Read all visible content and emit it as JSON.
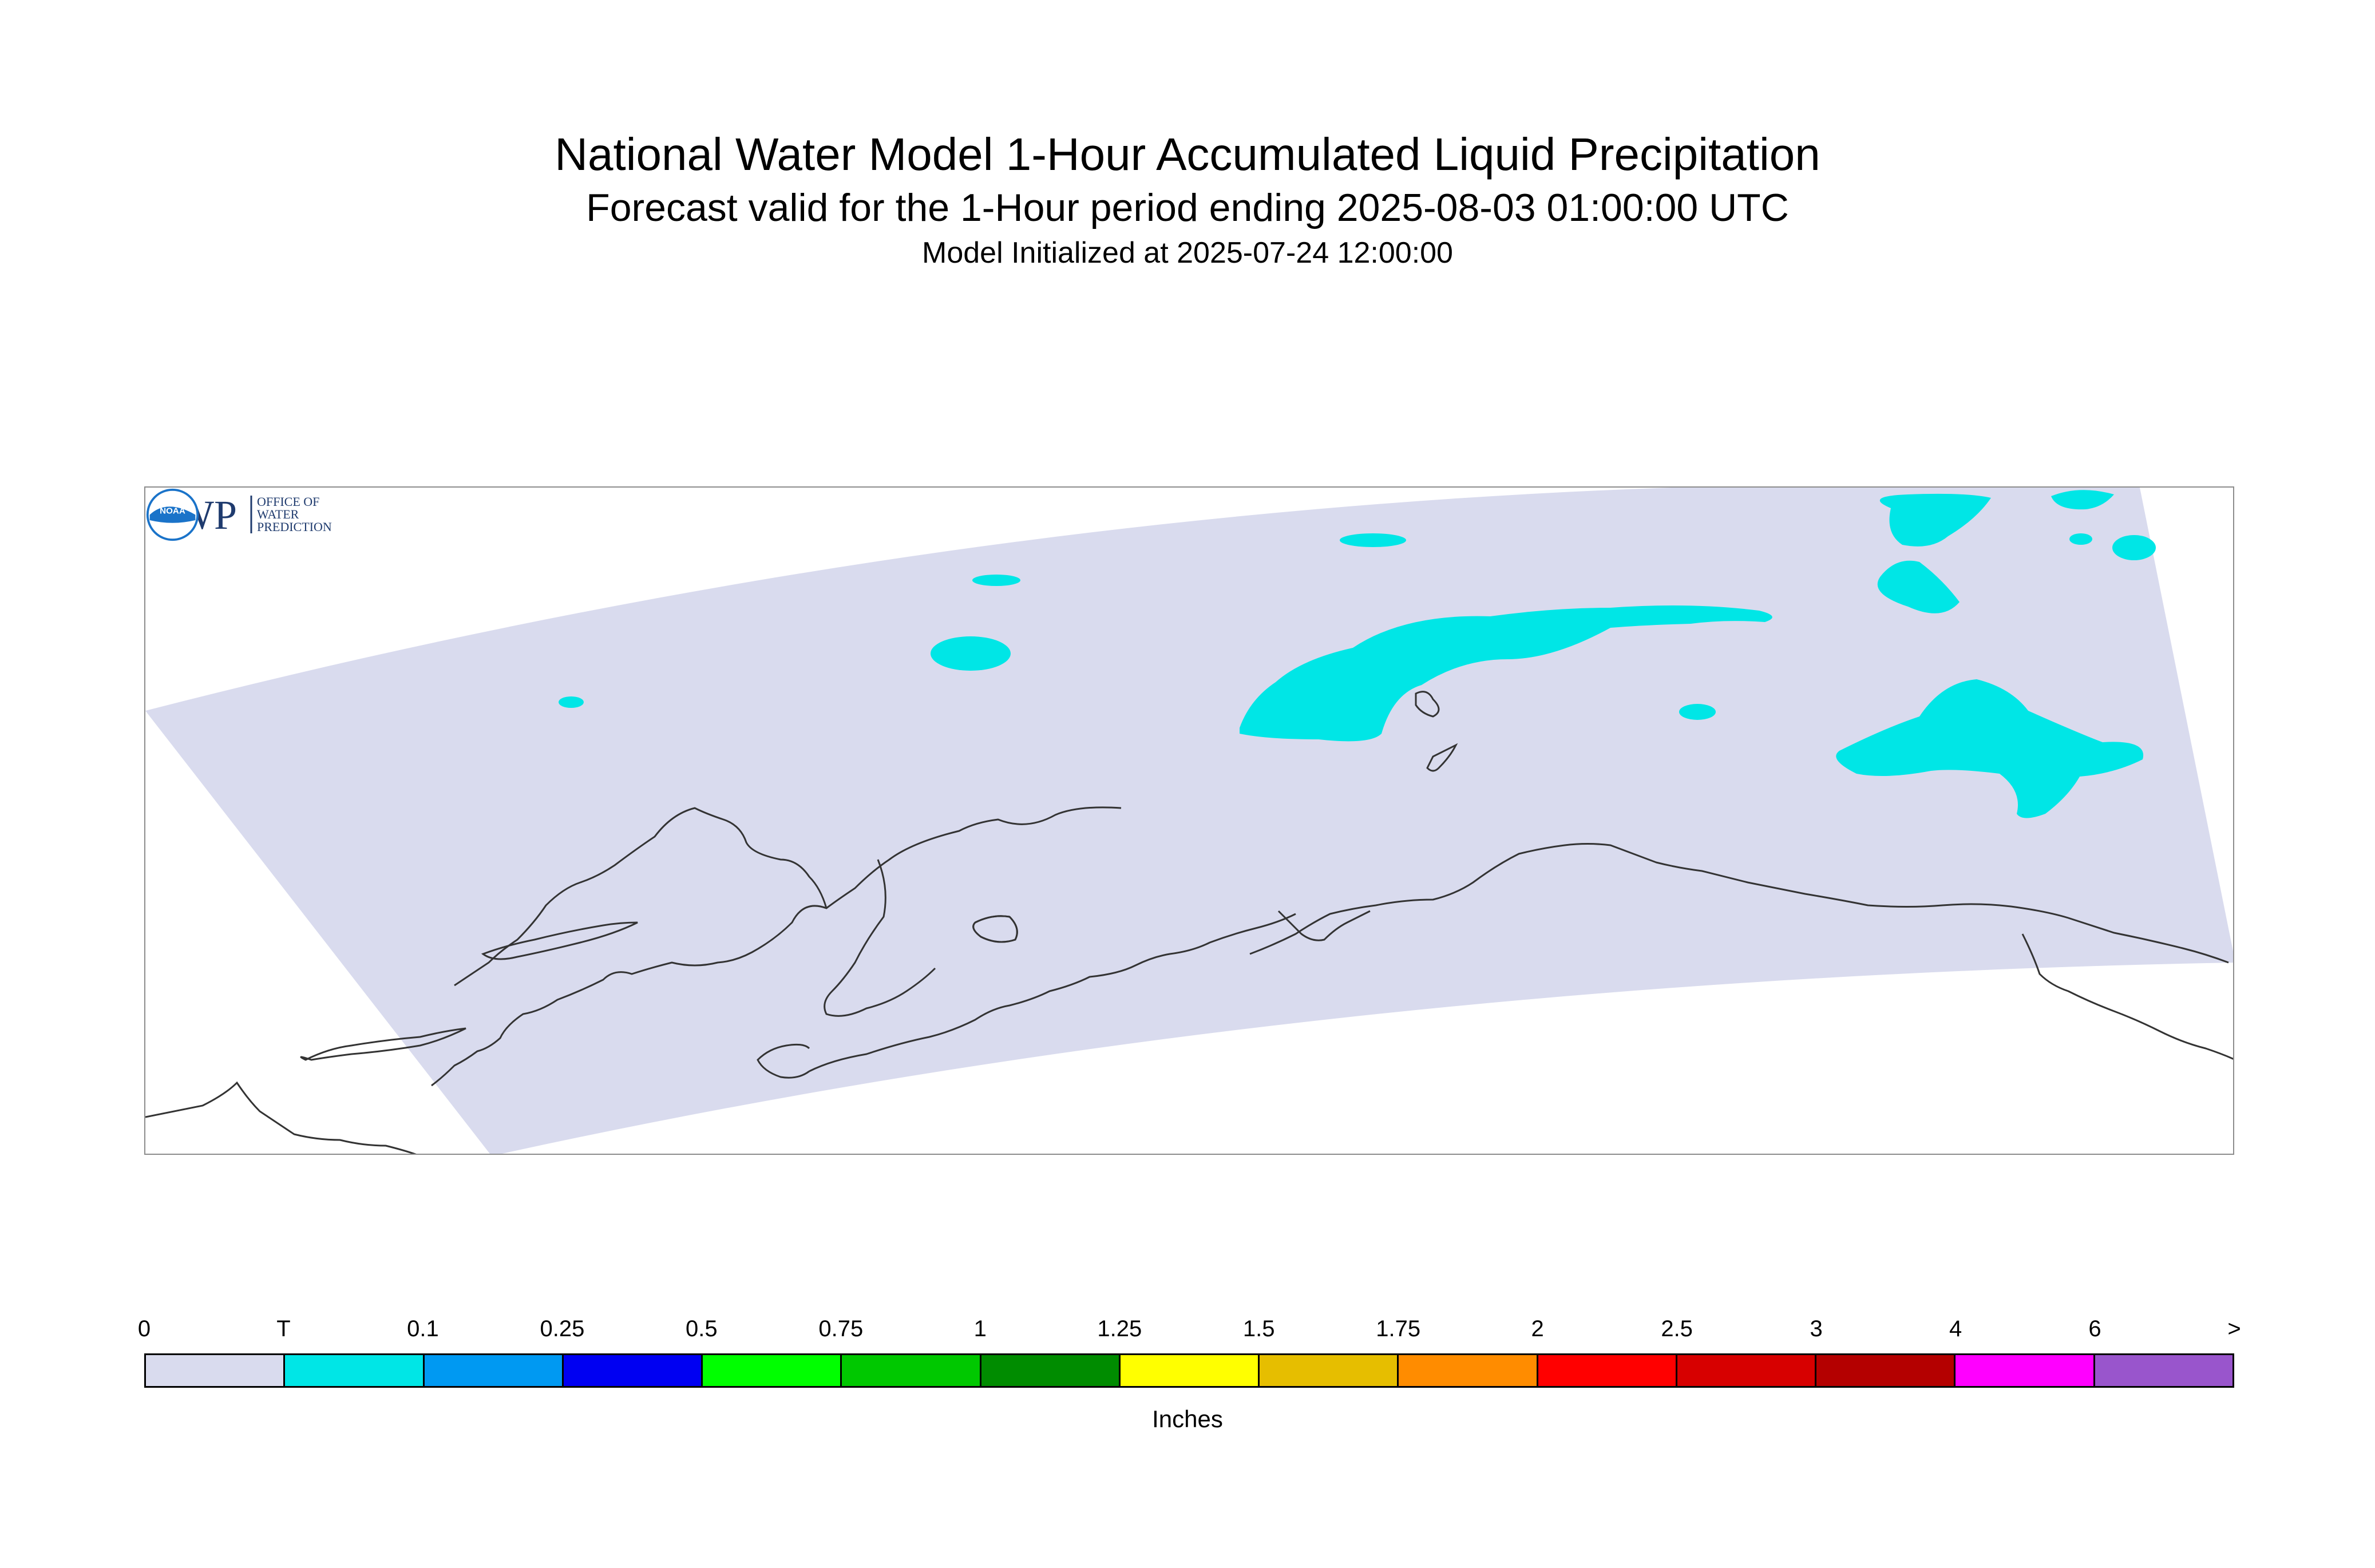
{
  "titles": {
    "main": "National Water Model 1-Hour Accumulated Liquid Precipitation",
    "forecast": "Forecast valid for the 1-Hour period ending 2025-08-03 01:00:00 UTC",
    "init": "Model Initialized at 2025-07-24 12:00:00"
  },
  "map": {
    "region_fill": "#d9dbee",
    "precip_fill": "#00e6e6",
    "coastline_color": "#333333"
  },
  "logos": {
    "owp": {
      "main_text": "OWP",
      "side_text": [
        "OFFICE OF",
        "WATER",
        "PREDICTION"
      ],
      "color": "#1f3b6e"
    },
    "noaa": {
      "text": "NOAA",
      "color": "#1a73c9"
    }
  },
  "legend": {
    "tick_labels": [
      "0",
      "T",
      "0.1",
      "0.25",
      "0.5",
      "0.75",
      "1",
      "1.25",
      "1.5",
      "1.75",
      "2",
      "2.5",
      "3",
      "4",
      "6",
      ">"
    ],
    "colors": [
      "#d9dbee",
      "#00e6e6",
      "#0099f2",
      "#0000f2",
      "#00ff00",
      "#00c800",
      "#008c00",
      "#ffff00",
      "#e6be00",
      "#ff8c00",
      "#ff0000",
      "#d70000",
      "#b40000",
      "#ff00ff",
      "#9955cc"
    ],
    "units": "Inches"
  }
}
